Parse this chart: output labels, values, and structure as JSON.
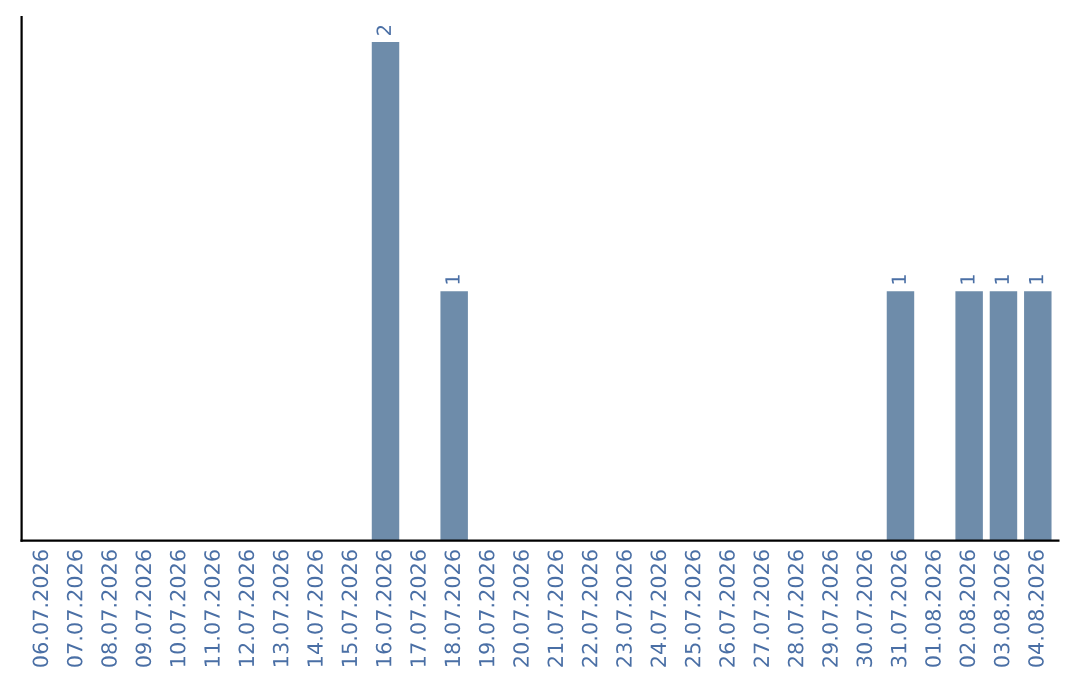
{
  "chart_data": {
    "type": "bar",
    "categories": [
      "06.07.2026",
      "07.07.2026",
      "08.07.2026",
      "09.07.2026",
      "10.07.2026",
      "11.07.2026",
      "12.07.2026",
      "13.07.2026",
      "14.07.2026",
      "15.07.2026",
      "16.07.2026",
      "17.07.2026",
      "18.07.2026",
      "19.07.2026",
      "20.07.2026",
      "21.07.2026",
      "22.07.2026",
      "23.07.2026",
      "24.07.2026",
      "25.07.2026",
      "26.07.2026",
      "27.07.2026",
      "28.07.2026",
      "29.07.2026",
      "30.07.2026",
      "31.07.2026",
      "01.08.2026",
      "02.08.2026",
      "03.08.2026",
      "04.08.2026"
    ],
    "values": [
      0,
      0,
      0,
      0,
      0,
      0,
      0,
      0,
      0,
      0,
      2,
      0,
      1,
      0,
      0,
      0,
      0,
      0,
      0,
      0,
      0,
      0,
      0,
      0,
      0,
      1,
      0,
      1,
      1,
      1
    ],
    "value_labels": [
      null,
      null,
      null,
      null,
      null,
      null,
      null,
      null,
      null,
      null,
      "2",
      null,
      "1",
      null,
      null,
      null,
      null,
      null,
      null,
      null,
      null,
      null,
      null,
      null,
      null,
      "1",
      null,
      "1",
      "1",
      "1"
    ],
    "color": "#6e8caa",
    "ylim": [
      0,
      2.1
    ],
    "tick_labels": "x",
    "grid": false,
    "legend": false
  }
}
